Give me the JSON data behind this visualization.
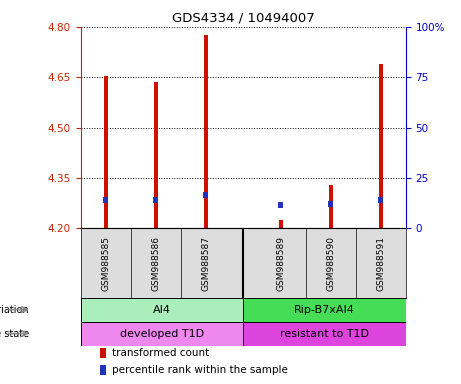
{
  "title": "GDS4334 / 10494007",
  "samples": [
    "GSM988585",
    "GSM988586",
    "GSM988587",
    "GSM988589",
    "GSM988590",
    "GSM988591"
  ],
  "transformed_counts": [
    4.655,
    4.635,
    4.775,
    4.225,
    4.33,
    4.69
  ],
  "percentile_ranks_scaled": [
    0.075,
    0.075,
    0.09,
    0.06,
    0.065,
    0.075
  ],
  "base_value": 4.2,
  "ylim_left": [
    4.2,
    4.8
  ],
  "ylim_right": [
    0,
    100
  ],
  "yticks_left": [
    4.2,
    4.35,
    4.5,
    4.65,
    4.8
  ],
  "yticks_right": [
    0,
    25,
    50,
    75,
    100
  ],
  "bar_color_red": "#CC1100",
  "bar_color_blue": "#2233BB",
  "bar_width": 0.08,
  "blue_bar_width": 0.09,
  "blue_bar_height": 0.018,
  "x_positions": [
    0.5,
    1.5,
    2.5,
    4.0,
    5.0,
    6.0
  ],
  "xlim": [
    0,
    6.5
  ],
  "group1_xrange": [
    0,
    3.25
  ],
  "group2_xrange": [
    3.25,
    6.5
  ],
  "genotype_groups": [
    {
      "label": "AI4",
      "x_start": 0,
      "x_end": 3.25,
      "color": "#AAEEBB"
    },
    {
      "label": "Rip-B7xAI4",
      "x_start": 3.25,
      "x_end": 6.5,
      "color": "#44DD55"
    }
  ],
  "disease_groups": [
    {
      "label": "developed T1D",
      "x_start": 0,
      "x_end": 3.25,
      "color": "#EE88EE"
    },
    {
      "label": "resistant to T1D",
      "x_start": 3.25,
      "x_end": 6.5,
      "color": "#DD44DD"
    }
  ],
  "legend_items": [
    {
      "label": "transformed count",
      "color": "#CC1100"
    },
    {
      "label": "percentile rank within the sample",
      "color": "#2233BB"
    }
  ],
  "label_fontsize": 7.5,
  "tick_fontsize": 7.5,
  "left_tick_color": "#CC2200",
  "right_tick_color": "#0000CC",
  "bg_color": "#DDDDDD"
}
